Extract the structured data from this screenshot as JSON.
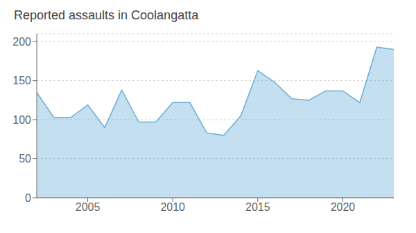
{
  "chart_data": {
    "type": "area",
    "title": "Reported assaults in Coolangatta",
    "x": [
      2002,
      2003,
      2004,
      2005,
      2006,
      2007,
      2008,
      2009,
      2010,
      2011,
      2012,
      2013,
      2014,
      2015,
      2016,
      2017,
      2018,
      2019,
      2020,
      2021,
      2022,
      2023
    ],
    "values": [
      135,
      103,
      103,
      119,
      90,
      138,
      97,
      97,
      122,
      122,
      83,
      80,
      105,
      163,
      148,
      127,
      125,
      137,
      137,
      122,
      193,
      190
    ],
    "color": "#6baed6",
    "xlim": [
      2002,
      2023
    ],
    "xticks": [
      2005,
      2010,
      2015,
      2020
    ],
    "ylim": [
      0,
      210
    ],
    "yticks": [
      0,
      50,
      100,
      150,
      200
    ],
    "grid": "y"
  }
}
